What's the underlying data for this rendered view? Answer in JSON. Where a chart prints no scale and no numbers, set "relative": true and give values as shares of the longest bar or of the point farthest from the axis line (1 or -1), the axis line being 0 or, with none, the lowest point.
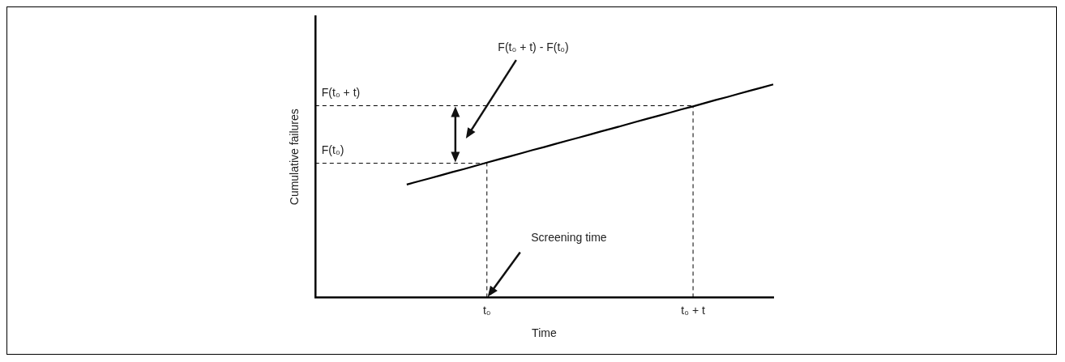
{
  "chart_data": {
    "type": "line",
    "relative": true,
    "xlabel": "Time",
    "ylabel": "Cumulative failures",
    "categories": [
      null,
      null,
      null,
      null,
      null,
      null,
      null,
      null,
      null,
      null,
      null,
      null,
      null,
      null,
      null,
      "t₀",
      null,
      null,
      null,
      null,
      null,
      null,
      null,
      null,
      null,
      null,
      null,
      null,
      null,
      null,
      null,
      null,
      null,
      "t₀ + t",
      null,
      null,
      null,
      null,
      null,
      null,
      null
    ],
    "series": [
      {
        "color": "#000000",
        "values": [
          null,
          null,
          null,
          null,
          null,
          null,
          null,
          null,
          0.53,
          0.545,
          0.559,
          0.574,
          0.589,
          0.603,
          0.618,
          0.633,
          0.648,
          0.662,
          0.677,
          0.692,
          0.706,
          0.721,
          0.736,
          0.75,
          0.765,
          0.78,
          0.794,
          0.809,
          0.824,
          0.839,
          0.853,
          0.868,
          0.883,
          0.897,
          0.912,
          0.927,
          0.941,
          0.956,
          0.971,
          0.985,
          1
        ]
      }
    ],
    "ref_lines": [
      {
        "axis": "y",
        "value": 0.63,
        "label": "F(t₀)",
        "line_style": "dashed",
        "color": "#000000"
      },
      {
        "axis": "y",
        "value": 0.9,
        "label": "F(t₀ + t)",
        "line_style": "dashed",
        "color": "#000000"
      },
      {
        "axis": "x",
        "value": "t₀",
        "label": null,
        "line_style": "dashed",
        "color": "#000000"
      },
      {
        "axis": "x",
        "value": "t₀ + t",
        "label": null,
        "line_style": "dashed",
        "color": "#000000"
      }
    ],
    "annotations": [
      "F(t₀ + t) - F(t₀)",
      "Screening time"
    ],
    "grid": false,
    "legend": false,
    "marker": "none",
    "line_style": "solid"
  }
}
